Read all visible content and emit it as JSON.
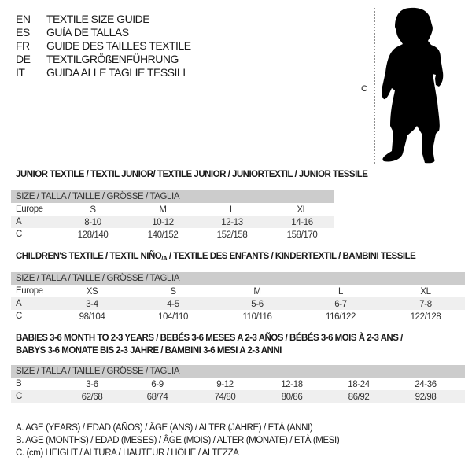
{
  "languages": [
    {
      "code": "EN",
      "text": "TEXTILE SIZE GUIDE"
    },
    {
      "code": "ES",
      "text": "GUÍA DE TALLAS"
    },
    {
      "code": "FR",
      "text": "GUIDE DES TAILLES TEXTILE"
    },
    {
      "code": "DE",
      "text": "TEXTILGRÖßENFÜHRUNG"
    },
    {
      "code": "IT",
      "text": "GUIDA ALLE TAGLIE TESSILI"
    }
  ],
  "figure": {
    "measure_label": "C"
  },
  "junior": {
    "title": "JUNIOR TEXTILE / TEXTIL JUNIOR/ TEXTILE JUNIOR / JUNIORTEXTIL / JUNIOR TESSILE",
    "header": "SIZE / TALLA / TAILLE / GRÖSSE / TAGLIA",
    "rows": [
      {
        "label": "Europe",
        "values": [
          "S",
          "M",
          "L",
          "XL"
        ]
      },
      {
        "label": "A",
        "values": [
          "8-10",
          "10-12",
          "12-13",
          "14-16"
        ]
      },
      {
        "label": "C",
        "values": [
          "128/140",
          "140/152",
          "152/158",
          "158/170"
        ]
      }
    ]
  },
  "children": {
    "title_main": "CHILDREN'S TEXTILE / TEXTIL NIÑO",
    "title_sub": "/A",
    "title_rest": " / TEXTILE DES ENFANTS / KINDERTEXTIL / BAMBINI TESSILE",
    "header": "SIZE / TALLA / TAILLE / GRÖSSE / TAGLIA",
    "rows": [
      {
        "label": "Europe",
        "values": [
          "XS",
          "S",
          "M",
          "L",
          "XL"
        ]
      },
      {
        "label": "A",
        "values": [
          "3-4",
          "4-5",
          "5-6",
          "6-7",
          "7-8"
        ]
      },
      {
        "label": "C",
        "values": [
          "98/104",
          "104/110",
          "110/116",
          "116/122",
          "122/128"
        ]
      }
    ]
  },
  "babies": {
    "title_line1": "BABIES 3-6 MONTH TO 2-3 YEARS / BEBÉS 3-6 MESES A 2-3 AÑOS / BÉBÉS 3-6 MOIS À 2-3 ANS /",
    "title_line2": "BABYS 3-6 MONATE BIS 2-3 JAHRE / BAMBINI 3-6 MESI A 2-3 ANNI",
    "header": "SIZE / TALLA / TAILLE / GRÖSSE / TAGLIA",
    "rows": [
      {
        "label": "B",
        "values": [
          "3-6",
          "6-9",
          "9-12",
          "12-18",
          "18-24",
          "24-36"
        ]
      },
      {
        "label": "C",
        "values": [
          "62/68",
          "68/74",
          "74/80",
          "80/86",
          "86/92",
          "92/98"
        ]
      }
    ]
  },
  "legend": [
    "A. AGE (YEARS) / EDAD (AÑOS) / ÂGE (ANS) / ALTER (JAHRE) / ETÀ (ANNI)",
    "B. AGE (MONTHS) / EDAD (MESES) / ÂGE (MOIS) / ALTER (MONATE) / ETÀ (MESI)",
    "C. (cm) HEIGHT / ALTURA / HAUTEUR / HÖHE / ALTEZZA"
  ]
}
